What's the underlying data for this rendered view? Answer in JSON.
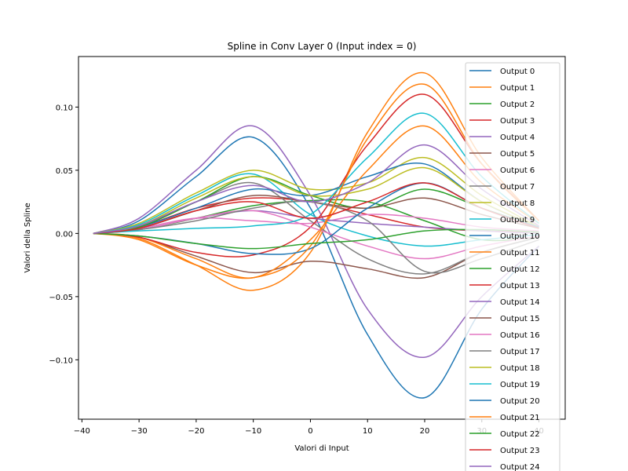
{
  "chart_data": {
    "type": "line",
    "title": "Spline in Conv Layer 0 (Input index = 0)",
    "xlabel": "Valori di Input",
    "ylabel": "Valori della Spline",
    "xlim": [
      -40.6,
      44.6
    ],
    "ylim": [
      -0.147,
      0.14
    ],
    "xticks": [
      -40,
      -30,
      -20,
      -10,
      0,
      10,
      20,
      30,
      40
    ],
    "yticks": [
      -0.1,
      -0.05,
      0.0,
      0.05,
      0.1
    ],
    "xtick_labels": [
      "−40",
      "−30",
      "−20",
      "−10",
      "0",
      "10",
      "20",
      "30",
      "40"
    ],
    "ytick_labels": [
      "−0.10",
      "−0.05",
      "0.00",
      "0.05",
      "0.10"
    ],
    "grid": false,
    "legend_position": "upper-right",
    "x": [
      -38,
      -30,
      -20,
      -10,
      0,
      10,
      20,
      30,
      40
    ],
    "series": [
      {
        "name": "Output 0",
        "color": "#1f77b4",
        "values": [
          0,
          0.01,
          0.045,
          0.076,
          0.02,
          -0.08,
          -0.13,
          -0.06,
          -0.01
        ]
      },
      {
        "name": "Output 1",
        "color": "#ff7f0e",
        "values": [
          0,
          -0.004,
          -0.025,
          -0.045,
          -0.015,
          0.08,
          0.127,
          0.06,
          0.01
        ]
      },
      {
        "name": "Output 2",
        "color": "#2ca02c",
        "values": [
          0,
          0.003,
          0.012,
          0.022,
          0.026,
          0.025,
          0.01,
          -0.005,
          -0.003
        ]
      },
      {
        "name": "Output 3",
        "color": "#d62728",
        "values": [
          0,
          0.005,
          0.02,
          0.028,
          0.025,
          0.015,
          0.005,
          0.002,
          0.001
        ]
      },
      {
        "name": "Output 4",
        "color": "#9467bd",
        "values": [
          0,
          0.012,
          0.05,
          0.085,
          0.03,
          -0.06,
          -0.098,
          -0.05,
          -0.01
        ]
      },
      {
        "name": "Output 5",
        "color": "#8c564b",
        "values": [
          0,
          -0.003,
          -0.018,
          -0.031,
          -0.022,
          -0.028,
          -0.035,
          -0.015,
          -0.003
        ]
      },
      {
        "name": "Output 6",
        "color": "#e377c2",
        "values": [
          0,
          0.004,
          0.012,
          0.01,
          0.008,
          0.015,
          0.012,
          0.005,
          0.002
        ]
      },
      {
        "name": "Output 7",
        "color": "#7f7f7f",
        "values": [
          0,
          0.006,
          0.025,
          0.04,
          0.01,
          -0.02,
          -0.032,
          -0.015,
          -0.003
        ]
      },
      {
        "name": "Output 8",
        "color": "#bcbd22",
        "values": [
          0,
          0.008,
          0.032,
          0.05,
          0.035,
          0.04,
          0.06,
          0.03,
          0.005
        ]
      },
      {
        "name": "Output 9",
        "color": "#17becf",
        "values": [
          0,
          0.007,
          0.03,
          0.047,
          0.015,
          -0.002,
          -0.01,
          -0.005,
          -0.001
        ]
      },
      {
        "name": "Output 10",
        "color": "#1f77b4",
        "values": [
          0,
          0.005,
          0.02,
          0.035,
          0.03,
          0.045,
          0.055,
          0.025,
          0.005
        ]
      },
      {
        "name": "Output 11",
        "color": "#ff7f0e",
        "values": [
          0,
          -0.003,
          -0.02,
          -0.035,
          -0.005,
          0.05,
          0.085,
          0.04,
          0.008
        ]
      },
      {
        "name": "Output 12",
        "color": "#2ca02c",
        "values": [
          0,
          0.005,
          0.025,
          0.045,
          0.03,
          0.02,
          0.035,
          0.02,
          0.005
        ]
      },
      {
        "name": "Output 13",
        "color": "#d62728",
        "values": [
          0,
          -0.003,
          -0.015,
          -0.017,
          0.005,
          0.07,
          0.11,
          0.055,
          0.01
        ]
      },
      {
        "name": "Output 14",
        "color": "#9467bd",
        "values": [
          0,
          0.003,
          0.012,
          0.018,
          0.012,
          0.008,
          0.005,
          0.002,
          0.0
        ]
      },
      {
        "name": "Output 15",
        "color": "#8c564b",
        "values": [
          0,
          0.004,
          0.018,
          0.03,
          0.025,
          0.02,
          0.028,
          0.015,
          0.004
        ]
      },
      {
        "name": "Output 16",
        "color": "#e377c2",
        "values": [
          0,
          0.003,
          0.012,
          0.018,
          0.005,
          -0.01,
          -0.02,
          -0.01,
          -0.002
        ]
      },
      {
        "name": "Output 17",
        "color": "#7f7f7f",
        "values": [
          0,
          0.003,
          0.01,
          0.02,
          0.025,
          0.01,
          -0.03,
          -0.02,
          -0.005
        ]
      },
      {
        "name": "Output 18",
        "color": "#bcbd22",
        "values": [
          0,
          0.006,
          0.028,
          0.045,
          0.03,
          0.035,
          0.052,
          0.025,
          0.005
        ]
      },
      {
        "name": "Output 19",
        "color": "#17becf",
        "values": [
          0,
          0.002,
          0.004,
          0.006,
          0.015,
          0.06,
          0.095,
          0.045,
          0.008
        ]
      },
      {
        "name": "Output 20",
        "color": "#1f77b4",
        "values": [
          0,
          -0.002,
          -0.008,
          -0.016,
          -0.012,
          0.02,
          0.04,
          0.02,
          0.005
        ]
      },
      {
        "name": "Output 21",
        "color": "#ff7f0e",
        "values": [
          0,
          -0.005,
          -0.025,
          -0.035,
          -0.01,
          0.075,
          0.118,
          0.055,
          0.01
        ]
      },
      {
        "name": "Output 22",
        "color": "#2ca02c",
        "values": [
          0,
          -0.002,
          -0.008,
          -0.012,
          -0.008,
          -0.005,
          0.002,
          0.003,
          0.001
        ]
      },
      {
        "name": "Output 23",
        "color": "#d62728",
        "values": [
          0,
          0.004,
          0.018,
          0.025,
          0.012,
          0.025,
          0.04,
          0.02,
          0.004
        ]
      },
      {
        "name": "Output 24",
        "color": "#9467bd",
        "values": [
          0,
          0.006,
          0.025,
          0.038,
          0.025,
          0.04,
          0.07,
          0.035,
          0.006
        ]
      }
    ]
  }
}
